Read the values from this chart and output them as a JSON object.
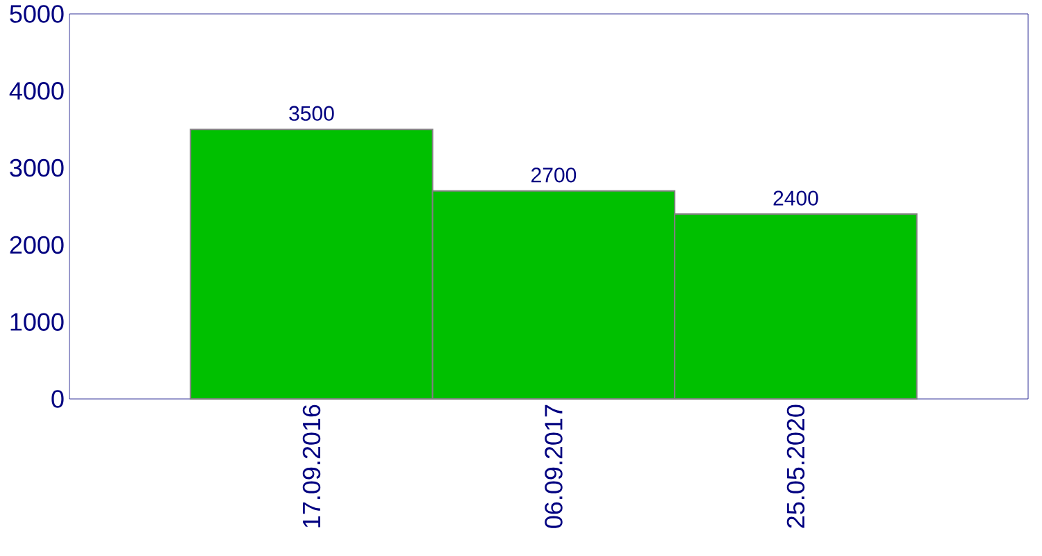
{
  "chart_data": {
    "type": "bar",
    "categories": [
      "17.09.2016",
      "06.09.2017",
      "25.05.2020"
    ],
    "values": [
      3500,
      2700,
      2400
    ],
    "value_labels": [
      "3500",
      "2700",
      "2400"
    ],
    "color": "#00c000",
    "ylim": [
      0,
      5000
    ],
    "yticks": [
      0,
      1000,
      2000,
      3000,
      4000,
      5000
    ]
  }
}
